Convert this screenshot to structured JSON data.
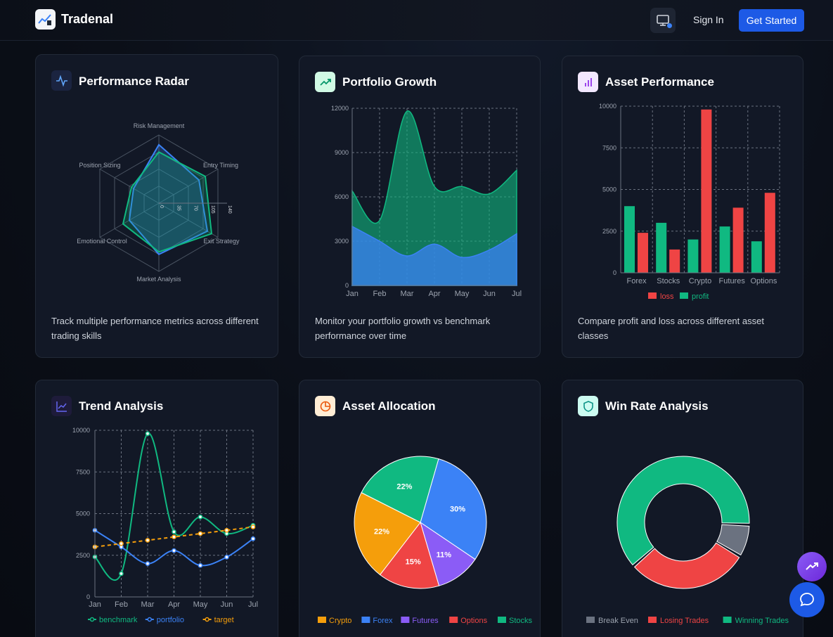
{
  "header": {
    "brand": "Tradenal",
    "sign_in": "Sign In",
    "get_started": "Get Started",
    "monitor_status_color": "#3b82f6"
  },
  "colors": {
    "green": "#10b981",
    "red": "#ef4444",
    "blue": "#3b82f6",
    "orange": "#f59e0b",
    "purple": "#8b5cf6",
    "gray": "#6b7280",
    "accent": "#1d5ae6"
  },
  "cards": {
    "radar": {
      "title": "Performance Radar",
      "icon": "activity-icon",
      "description": "Track multiple performance metrics across different trading skills"
    },
    "growth": {
      "title": "Portfolio Growth",
      "icon": "trending-up-icon",
      "description": "Monitor your portfolio growth vs benchmark performance over time"
    },
    "asset_perf": {
      "title": "Asset Performance",
      "icon": "bar-chart-icon",
      "description": "Compare profit and loss across different asset classes"
    },
    "trend": {
      "title": "Trend Analysis",
      "icon": "line-chart-icon"
    },
    "allocation": {
      "title": "Asset Allocation",
      "icon": "pie-chart-icon"
    },
    "winrate": {
      "title": "Win Rate Analysis",
      "icon": "shield-icon"
    }
  },
  "chart_data": [
    {
      "id": "radar",
      "type": "radar",
      "axes": [
        "Risk Management",
        "Entry Timing",
        "Exit Strategy",
        "Market Analysis",
        "Emotional Control",
        "Position Sizing"
      ],
      "rlim": [
        0,
        140
      ],
      "ticks": [
        "0",
        "35",
        "70",
        "105",
        "140"
      ],
      "series": [
        {
          "values": [
            120,
            95,
            115,
            105,
            70,
            60
          ],
          "color": "#3b82f6"
        },
        {
          "values": [
            105,
            110,
            125,
            100,
            85,
            65
          ],
          "color": "#10b981"
        }
      ]
    },
    {
      "id": "growth",
      "type": "area",
      "categories": [
        "Jan",
        "Feb",
        "Mar",
        "Apr",
        "May",
        "Jun",
        "Jul"
      ],
      "ylim": [
        0,
        12000
      ],
      "yticks": [
        "0",
        "3000",
        "6000",
        "9000",
        "12000"
      ],
      "series": [
        {
          "values": [
            4000,
            3000,
            2000,
            2800,
            1900,
            2400,
            3500
          ],
          "color": "#3b82f6"
        },
        {
          "values": [
            2400,
            1400,
            9800,
            3900,
            4800,
            3800,
            4300
          ],
          "color": "#10b981"
        }
      ]
    },
    {
      "id": "asset_perf",
      "type": "bar",
      "categories": [
        "Forex",
        "Stocks",
        "Crypto",
        "Futures",
        "Options"
      ],
      "ylim": [
        0,
        10000
      ],
      "yticks": [
        "0",
        "2500",
        "5000",
        "7500",
        "10000"
      ],
      "series": [
        {
          "name": "profit",
          "values": [
            4000,
            3000,
            2000,
            2780,
            1890
          ],
          "color": "#10b981"
        },
        {
          "name": "loss",
          "values": [
            2400,
            1398,
            9800,
            3908,
            4800
          ],
          "color": "#ef4444"
        }
      ],
      "legend": [
        "loss",
        "profit"
      ]
    },
    {
      "id": "trend",
      "type": "line",
      "categories": [
        "Jan",
        "Feb",
        "Mar",
        "Apr",
        "May",
        "Jun",
        "Jul"
      ],
      "ylim": [
        0,
        10000
      ],
      "yticks": [
        "0",
        "2500",
        "5000",
        "7500",
        "10000"
      ],
      "series": [
        {
          "name": "benchmark",
          "values": [
            2400,
            1398,
            9800,
            3908,
            4800,
            3800,
            4300
          ],
          "color": "#10b981"
        },
        {
          "name": "portfolio",
          "values": [
            4000,
            3000,
            2000,
            2780,
            1890,
            2390,
            3490
          ],
          "color": "#3b82f6"
        },
        {
          "name": "target",
          "values": [
            3000,
            3200,
            3400,
            3600,
            3800,
            4000,
            4200
          ],
          "color": "#f59e0b"
        }
      ]
    },
    {
      "id": "allocation",
      "type": "pie",
      "slices": [
        {
          "name": "Forex",
          "value": 30,
          "label": "30%",
          "color": "#3b82f6"
        },
        {
          "name": "Futures",
          "value": 11,
          "label": "11%",
          "color": "#8b5cf6"
        },
        {
          "name": "Options",
          "value": 15,
          "label": "15%",
          "color": "#ef4444"
        },
        {
          "name": "Crypto",
          "value": 22,
          "label": "22%",
          "color": "#f59e0b"
        },
        {
          "name": "Stocks",
          "value": 22,
          "label": "22%",
          "color": "#10b981"
        }
      ],
      "legend": [
        "Crypto",
        "Forex",
        "Futures",
        "Options",
        "Stocks"
      ]
    },
    {
      "id": "winrate",
      "type": "donut",
      "slices": [
        {
          "name": "Winning Trades",
          "value": 62,
          "color": "#10b981"
        },
        {
          "name": "Break Even",
          "value": 8,
          "color": "#6b7280"
        },
        {
          "name": "Losing Trades",
          "value": 30,
          "color": "#ef4444"
        }
      ],
      "legend": [
        "Break Even",
        "Losing Trades",
        "Winning Trades"
      ]
    }
  ]
}
